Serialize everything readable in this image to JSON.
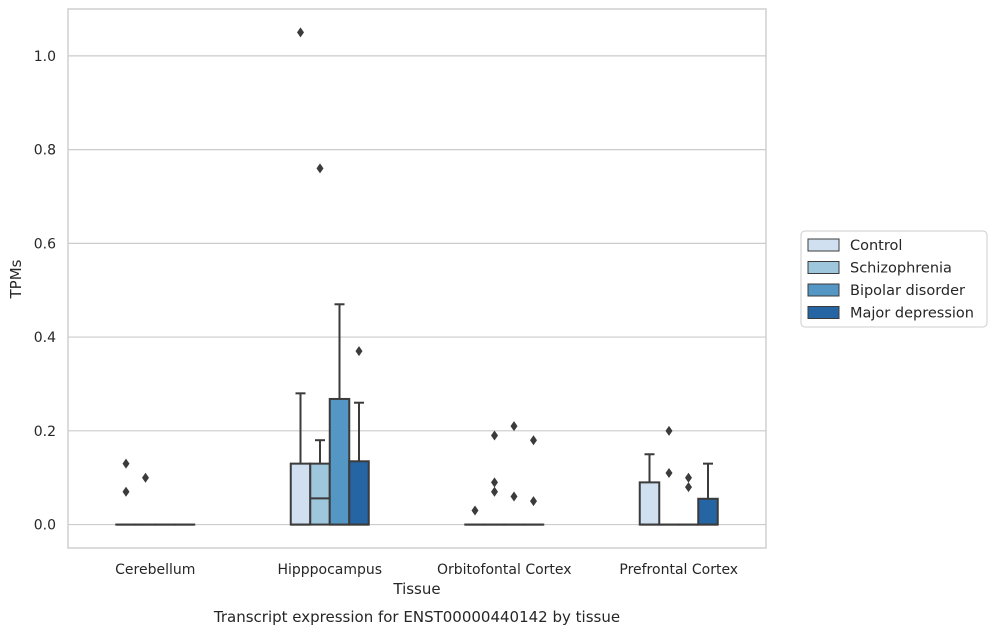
{
  "chart_data": {
    "type": "box",
    "title": "",
    "caption": "Transcript expression for ENST00000440142 by tissue",
    "xlabel": "Tissue",
    "ylabel": "TPMs",
    "ylim": [
      -0.05,
      1.1
    ],
    "yticks": [
      0.0,
      0.2,
      0.4,
      0.6,
      0.8,
      1.0
    ],
    "ytick_labels": [
      "0.0",
      "0.2",
      "0.4",
      "0.6",
      "0.8",
      "1.0"
    ],
    "grid": true,
    "legend_position": "right",
    "categories": [
      "Cerebellum",
      "Hipppocampus",
      "Orbitofontal Cortex",
      "Prefrontal Cortex"
    ],
    "series": [
      {
        "name": "Control",
        "color": "#d0e0f0",
        "boxes": [
          {
            "q1": 0.0,
            "median": 0.0,
            "q3": 0.0,
            "whisker_low": 0.0,
            "whisker_high": 0.0,
            "outliers": [
              0.07,
              0.13
            ]
          },
          {
            "q1": 0.0,
            "median": 0.0,
            "q3": 0.13,
            "whisker_low": 0.0,
            "whisker_high": 0.28,
            "outliers": [
              1.05
            ]
          },
          {
            "q1": 0.0,
            "median": 0.0,
            "q3": 0.0,
            "whisker_low": 0.0,
            "whisker_high": 0.0,
            "outliers": [
              0.03
            ]
          },
          {
            "q1": 0.0,
            "median": 0.0,
            "q3": 0.09,
            "whisker_low": 0.0,
            "whisker_high": 0.15,
            "outliers": []
          }
        ]
      },
      {
        "name": "Schizophrenia",
        "color": "#9ec6dd",
        "boxes": [
          {
            "q1": 0.0,
            "median": 0.0,
            "q3": 0.0,
            "whisker_low": 0.0,
            "whisker_high": 0.0,
            "outliers": [
              0.1
            ]
          },
          {
            "q1": 0.0,
            "median": 0.056,
            "q3": 0.13,
            "whisker_low": 0.0,
            "whisker_high": 0.18,
            "outliers": [
              0.76
            ]
          },
          {
            "q1": 0.0,
            "median": 0.0,
            "q3": 0.0,
            "whisker_low": 0.0,
            "whisker_high": 0.0,
            "outliers": [
              0.07,
              0.09,
              0.19
            ]
          },
          {
            "q1": 0.0,
            "median": 0.0,
            "q3": 0.0,
            "whisker_low": 0.0,
            "whisker_high": 0.0,
            "outliers": [
              0.11,
              0.2
            ]
          }
        ]
      },
      {
        "name": "Bipolar disorder",
        "color": "#5496c4",
        "boxes": [
          {
            "q1": 0.0,
            "median": 0.0,
            "q3": 0.0,
            "whisker_low": 0.0,
            "whisker_high": 0.0,
            "outliers": []
          },
          {
            "q1": 0.0,
            "median": 0.0,
            "q3": 0.268,
            "whisker_low": 0.0,
            "whisker_high": 0.47,
            "outliers": []
          },
          {
            "q1": 0.0,
            "median": 0.0,
            "q3": 0.0,
            "whisker_low": 0.0,
            "whisker_high": 0.0,
            "outliers": [
              0.06,
              0.21
            ]
          },
          {
            "q1": 0.0,
            "median": 0.0,
            "q3": 0.0,
            "whisker_low": 0.0,
            "whisker_high": 0.0,
            "outliers": [
              0.08,
              0.1
            ]
          }
        ]
      },
      {
        "name": "Major depression",
        "color": "#2665a3",
        "boxes": [
          {
            "q1": 0.0,
            "median": 0.0,
            "q3": 0.0,
            "whisker_low": 0.0,
            "whisker_high": 0.0,
            "outliers": []
          },
          {
            "q1": 0.0,
            "median": 0.0,
            "q3": 0.135,
            "whisker_low": 0.0,
            "whisker_high": 0.26,
            "outliers": [
              0.37
            ]
          },
          {
            "q1": 0.0,
            "median": 0.0,
            "q3": 0.0,
            "whisker_low": 0.0,
            "whisker_high": 0.0,
            "outliers": [
              0.05,
              0.18
            ]
          },
          {
            "q1": 0.0,
            "median": 0.0,
            "q3": 0.055,
            "whisker_low": 0.0,
            "whisker_high": 0.13,
            "outliers": []
          }
        ]
      }
    ]
  }
}
